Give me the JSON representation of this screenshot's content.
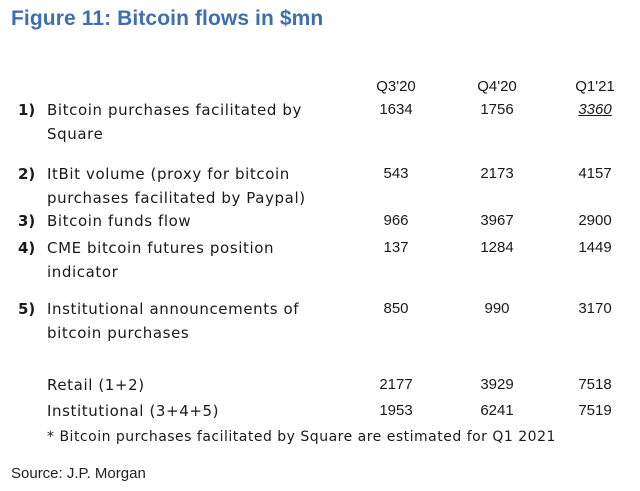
{
  "title": "Figure 11: Bitcoin flows in $mn",
  "columns": [
    "Q3'20",
    "Q4'20",
    "Q1'21"
  ],
  "rows": [
    {
      "num": "1)",
      "label": "Bitcoin purchases facilitated by Square",
      "values": [
        "1634",
        "1756",
        "3360"
      ]
    },
    {
      "num": "2)",
      "label": "ItBit volume (proxy for bitcoin purchases facilitated by Paypal)",
      "values": [
        "543",
        "2173",
        "4157"
      ]
    },
    {
      "num": "3)",
      "label": "Bitcoin funds flow",
      "values": [
        "966",
        "3967",
        "2900"
      ]
    },
    {
      "num": "4)",
      "label": "CME bitcoin futures position indicator",
      "values": [
        "137",
        "1284",
        "1449"
      ]
    },
    {
      "num": "5)",
      "label": "Institutional announcements of bitcoin purchases",
      "values": [
        "850",
        "990",
        "3170"
      ]
    }
  ],
  "totals": [
    {
      "label": "Retail (1+2)",
      "values": [
        "2177",
        "3929",
        "7518"
      ]
    },
    {
      "label": "Institutional (3+4+5)",
      "values": [
        "1953",
        "6241",
        "7519"
      ]
    }
  ],
  "note": "* Bitcoin purchases facilitated by Square are estimated for Q1 2021",
  "source": "Source: J.P. Morgan"
}
